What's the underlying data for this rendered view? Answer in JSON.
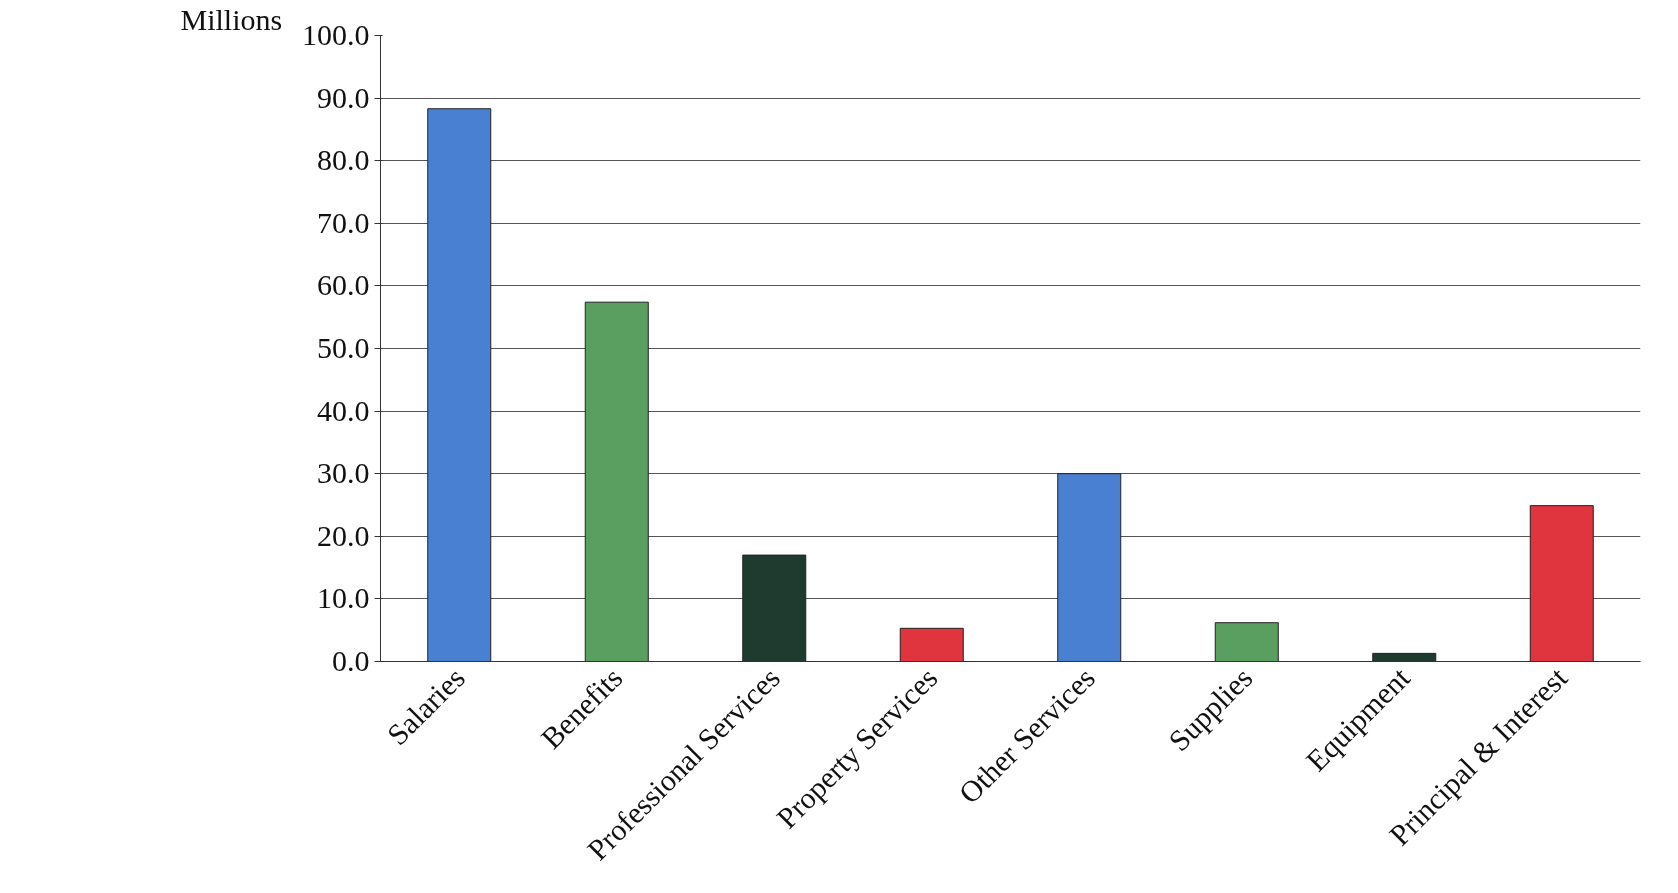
{
  "chart_data": {
    "type": "bar",
    "ylabel": "Millions",
    "categories": [
      "Salaries",
      "Benefits",
      "Professional Services",
      "Property Services",
      "Other Services",
      "Supplies",
      "Equipment",
      "Principal & Interest"
    ],
    "values": [
      88.3,
      57.4,
      17.0,
      5.3,
      30.0,
      6.2,
      1.3,
      24.9
    ],
    "colors": [
      "#4a80d2",
      "#5a9f5f",
      "#1f3b2f",
      "#e0343f",
      "#4a80d2",
      "#5a9f5f",
      "#1f3b2f",
      "#e0343f"
    ],
    "ylim": [
      0,
      100
    ],
    "yticks": [
      {
        "value": 0,
        "label": "0.0"
      },
      {
        "value": 10,
        "label": "10.0"
      },
      {
        "value": 20,
        "label": "20.0"
      },
      {
        "value": 30,
        "label": "30.0"
      },
      {
        "value": 40,
        "label": "40.0"
      },
      {
        "value": 50,
        "label": "50.0"
      },
      {
        "value": 60,
        "label": "60.0"
      },
      {
        "value": 70,
        "label": "70.0"
      },
      {
        "value": 80,
        "label": "80.0"
      },
      {
        "value": 90,
        "label": "90.0"
      },
      {
        "value": 100,
        "label": "100.0"
      }
    ],
    "grid": "y"
  }
}
